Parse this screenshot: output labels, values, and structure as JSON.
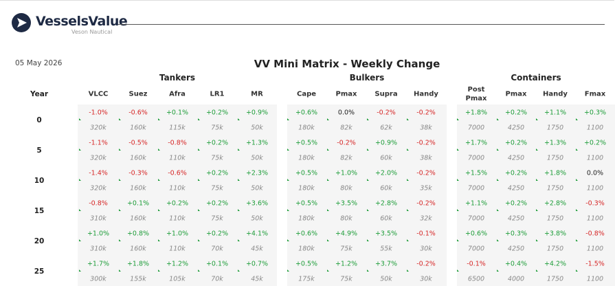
{
  "header": {
    "brand": "VesselsValue",
    "sub_brand": "Veson Nautical"
  },
  "date": "05 May 2026",
  "title": "VV Mini Matrix - Weekly Change",
  "table": {
    "year_header": "Year",
    "groups": [
      {
        "name": "Tankers",
        "columns": [
          "VLCC",
          "Suez",
          "Afra",
          "LR1",
          "MR"
        ]
      },
      {
        "name": "Bulkers",
        "columns": [
          "Cape",
          "Pmax",
          "Supra",
          "Handy"
        ]
      },
      {
        "name": "Containers",
        "columns": [
          "Post Pmax",
          "Pmax",
          "Handy",
          "Fmax"
        ]
      }
    ],
    "rows": [
      {
        "year": "0",
        "cells": [
          [
            "-1.0%",
            "320k"
          ],
          [
            "-0.6%",
            "160k"
          ],
          [
            "+0.1%",
            "115k"
          ],
          [
            "+0.2%",
            "75k"
          ],
          [
            "+0.9%",
            "50k"
          ],
          [
            "+0.6%",
            "180k"
          ],
          [
            "0.0%",
            "82k"
          ],
          [
            "-0.2%",
            "62k"
          ],
          [
            "-0.2%",
            "38k"
          ],
          [
            "+1.8%",
            "7000"
          ],
          [
            "+0.2%",
            "4250"
          ],
          [
            "+1.1%",
            "1750"
          ],
          [
            "+0.3%",
            "1100"
          ]
        ]
      },
      {
        "year": "5",
        "cells": [
          [
            "-1.1%",
            "320k"
          ],
          [
            "-0.5%",
            "160k"
          ],
          [
            "-0.8%",
            "110k"
          ],
          [
            "+0.2%",
            "75k"
          ],
          [
            "+1.3%",
            "50k"
          ],
          [
            "+0.5%",
            "180k"
          ],
          [
            "-0.2%",
            "82k"
          ],
          [
            "+0.9%",
            "60k"
          ],
          [
            "-0.2%",
            "38k"
          ],
          [
            "+1.7%",
            "7000"
          ],
          [
            "+0.2%",
            "4250"
          ],
          [
            "+1.3%",
            "1750"
          ],
          [
            "+0.2%",
            "1100"
          ]
        ]
      },
      {
        "year": "10",
        "cells": [
          [
            "-1.4%",
            "320k"
          ],
          [
            "-0.3%",
            "160k"
          ],
          [
            "-0.6%",
            "110k"
          ],
          [
            "+0.2%",
            "75k"
          ],
          [
            "+2.3%",
            "50k"
          ],
          [
            "+0.5%",
            "180k"
          ],
          [
            "+1.0%",
            "80k"
          ],
          [
            "+2.0%",
            "60k"
          ],
          [
            "-0.2%",
            "35k"
          ],
          [
            "+1.5%",
            "7000"
          ],
          [
            "+0.2%",
            "4250"
          ],
          [
            "+1.8%",
            "1750"
          ],
          [
            "0.0%",
            "1100"
          ]
        ]
      },
      {
        "year": "15",
        "cells": [
          [
            "-0.8%",
            "310k"
          ],
          [
            "+0.1%",
            "160k"
          ],
          [
            "+0.2%",
            "110k"
          ],
          [
            "+0.2%",
            "75k"
          ],
          [
            "+3.6%",
            "50k"
          ],
          [
            "+0.5%",
            "180k"
          ],
          [
            "+3.5%",
            "80k"
          ],
          [
            "+2.8%",
            "60k"
          ],
          [
            "-0.2%",
            "32k"
          ],
          [
            "+1.1%",
            "7000"
          ],
          [
            "+0.2%",
            "4250"
          ],
          [
            "+2.8%",
            "1750"
          ],
          [
            "-0.3%",
            "1100"
          ]
        ]
      },
      {
        "year": "20",
        "cells": [
          [
            "+1.0%",
            "310k"
          ],
          [
            "+0.8%",
            "160k"
          ],
          [
            "+1.0%",
            "110k"
          ],
          [
            "+0.2%",
            "70k"
          ],
          [
            "+4.1%",
            "45k"
          ],
          [
            "+0.6%",
            "180k"
          ],
          [
            "+4.9%",
            "75k"
          ],
          [
            "+3.5%",
            "55k"
          ],
          [
            "-0.1%",
            "30k"
          ],
          [
            "+0.6%",
            "7000"
          ],
          [
            "+0.3%",
            "4250"
          ],
          [
            "+3.8%",
            "1750"
          ],
          [
            "-0.8%",
            "1100"
          ]
        ]
      },
      {
        "year": "25",
        "cells": [
          [
            "+1.7%",
            "300k"
          ],
          [
            "+1.8%",
            "155k"
          ],
          [
            "+1.2%",
            "105k"
          ],
          [
            "+0.1%",
            "70k"
          ],
          [
            "+0.7%",
            "45k"
          ],
          [
            "+0.5%",
            "175k"
          ],
          [
            "+1.2%",
            "75k"
          ],
          [
            "+3.7%",
            "50k"
          ],
          [
            "-0.2%",
            "30k"
          ],
          [
            "-0.1%",
            "6500"
          ],
          [
            "+0.4%",
            "4000"
          ],
          [
            "+4.2%",
            "1750"
          ],
          [
            "-1.5%",
            "1100"
          ]
        ]
      }
    ]
  }
}
